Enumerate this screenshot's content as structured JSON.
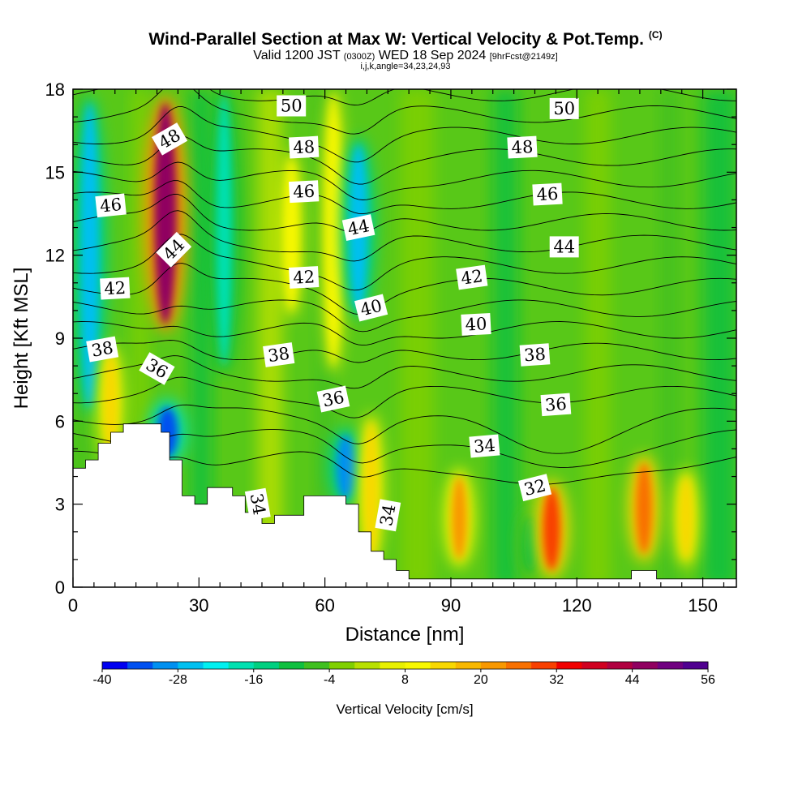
{
  "title": {
    "main": "Wind-Parallel Section at Max W: Vertical Velocity & Pot.Temp.",
    "copyright": "(C)",
    "valid_a": "Valid 1200 JST",
    "valid_z": "(0300Z)",
    "valid_b": "WED 18 Sep 2024",
    "valid_fcst": "[9hrFcst@2149z]",
    "indices": "i,j,k,angle=34,23,24,93"
  },
  "chart_data": {
    "type": "heatmap",
    "xlabel": "Distance [nm]",
    "ylabel": "Height [Kft MSL]",
    "xlim": [
      0,
      158
    ],
    "ylim": [
      0,
      18
    ],
    "x_ticks": [
      0,
      30,
      60,
      90,
      120,
      150
    ],
    "y_ticks": [
      0,
      3,
      6,
      9,
      12,
      15,
      18
    ],
    "colorbar": {
      "title": "Vertical Velocity [cm/s]",
      "min": -40,
      "max": 56,
      "step": 4,
      "tick_labels": [
        "-40",
        "-28",
        "-16",
        "-4",
        "8",
        "20",
        "32",
        "44",
        "56"
      ],
      "colors": [
        "#0000f0",
        "#0050f0",
        "#0090f0",
        "#00c0f0",
        "#00f0f0",
        "#00e0b0",
        "#00d080",
        "#10c040",
        "#40c020",
        "#80d000",
        "#b8e000",
        "#e8f000",
        "#f8f800",
        "#f8d800",
        "#f8b800",
        "#f89800",
        "#f87000",
        "#f84000",
        "#f00000",
        "#d00020",
        "#b00040",
        "#900060",
        "#700080",
        "#500090"
      ]
    },
    "velocity_features": [
      {
        "x": 4,
        "y_top": 17.5,
        "y_bottom": 6.5,
        "w": -28
      },
      {
        "x": 9,
        "y_top": 8.5,
        "y_bottom": 4.8,
        "w": 14
      },
      {
        "x": 22,
        "y_top": 17.5,
        "y_bottom": 9.5,
        "w": 44
      },
      {
        "x": 22.5,
        "y_top": 6.5,
        "y_bottom": 4.7,
        "w": -36
      },
      {
        "x": 36,
        "y_top": 17.8,
        "y_bottom": 8,
        "w": -20
      },
      {
        "x": 52,
        "y_top": 15.5,
        "y_bottom": 10,
        "w": 8
      },
      {
        "x": 62,
        "y_top": 17.8,
        "y_bottom": 8,
        "w": 10
      },
      {
        "x": 68,
        "y_top": 16,
        "y_bottom": 10,
        "w": -28
      },
      {
        "x": 65,
        "y_top": 5.5,
        "y_bottom": 3.2,
        "w": -32
      },
      {
        "x": 71,
        "y_top": 6,
        "y_bottom": 1,
        "w": 14
      },
      {
        "x": 92,
        "y_top": 4,
        "y_bottom": 1,
        "w": 20
      },
      {
        "x": 109,
        "y_top": 2.5,
        "y_bottom": 0.6,
        "w": -12
      },
      {
        "x": 114,
        "y_top": 3.6,
        "y_bottom": 0.6,
        "w": 28
      },
      {
        "x": 136,
        "y_top": 4.5,
        "y_bottom": 1.2,
        "w": 24
      },
      {
        "x": 146,
        "y_top": 4,
        "y_bottom": 1,
        "w": 14
      }
    ],
    "terrain": [
      [
        0,
        4.3
      ],
      [
        3,
        4.3
      ],
      [
        3,
        4.6
      ],
      [
        6,
        4.6
      ],
      [
        6,
        5.2
      ],
      [
        9,
        5.2
      ],
      [
        9,
        5.6
      ],
      [
        12,
        5.6
      ],
      [
        12,
        5.9
      ],
      [
        18,
        5.9
      ],
      [
        18,
        5.9
      ],
      [
        21,
        5.9
      ],
      [
        21,
        5.6
      ],
      [
        23,
        5.6
      ],
      [
        23,
        4.6
      ],
      [
        26,
        4.6
      ],
      [
        26,
        3.3
      ],
      [
        29,
        3.3
      ],
      [
        29,
        3.0
      ],
      [
        32,
        3.0
      ],
      [
        32,
        3.6
      ],
      [
        38,
        3.6
      ],
      [
        38,
        3.3
      ],
      [
        41,
        3.3
      ],
      [
        41,
        2.7
      ],
      [
        45,
        2.7
      ],
      [
        45,
        2.3
      ],
      [
        48,
        2.3
      ],
      [
        48,
        2.6
      ],
      [
        55,
        2.6
      ],
      [
        55,
        3.3
      ],
      [
        65,
        3.3
      ],
      [
        65,
        3.0
      ],
      [
        68,
        3.0
      ],
      [
        68,
        2.0
      ],
      [
        71,
        2.0
      ],
      [
        71,
        1.3
      ],
      [
        74,
        1.3
      ],
      [
        74,
        1.0
      ],
      [
        77,
        1.0
      ],
      [
        77,
        0.6
      ],
      [
        80,
        0.6
      ],
      [
        80,
        0.3
      ],
      [
        84,
        0.3
      ],
      [
        84,
        0.3
      ],
      [
        133,
        0.3
      ],
      [
        133,
        0.6
      ],
      [
        139,
        0.6
      ],
      [
        139,
        0.3
      ],
      [
        158,
        0.3
      ]
    ],
    "theta_contour_labels": [
      {
        "text": "50",
        "x": 52,
        "y": 17.4,
        "angle": 0
      },
      {
        "text": "50",
        "x": 117,
        "y": 17.3,
        "angle": 0
      },
      {
        "text": "48",
        "x": 23,
        "y": 16.2,
        "angle": -30
      },
      {
        "text": "48",
        "x": 55,
        "y": 15.9,
        "angle": -3
      },
      {
        "text": "48",
        "x": 107,
        "y": 15.9,
        "angle": -3
      },
      {
        "text": "46",
        "x": 9,
        "y": 13.8,
        "angle": -6
      },
      {
        "text": "46",
        "x": 55,
        "y": 14.3,
        "angle": -3
      },
      {
        "text": "46",
        "x": 113,
        "y": 14.2,
        "angle": -3
      },
      {
        "text": "44",
        "x": 24,
        "y": 12.2,
        "angle": -45
      },
      {
        "text": "44",
        "x": 68,
        "y": 13.0,
        "angle": -12
      },
      {
        "text": "44",
        "x": 117,
        "y": 12.3,
        "angle": 0
      },
      {
        "text": "42",
        "x": 10,
        "y": 10.8,
        "angle": -3
      },
      {
        "text": "42",
        "x": 55,
        "y": 11.2,
        "angle": -3
      },
      {
        "text": "42",
        "x": 95,
        "y": 11.2,
        "angle": -8
      },
      {
        "text": "40",
        "x": 71,
        "y": 10.1,
        "angle": -14
      },
      {
        "text": "40",
        "x": 96,
        "y": 9.5,
        "angle": -3
      },
      {
        "text": "38",
        "x": 7,
        "y": 8.6,
        "angle": -10
      },
      {
        "text": "38",
        "x": 49,
        "y": 8.4,
        "angle": -8
      },
      {
        "text": "38",
        "x": 110,
        "y": 8.4,
        "angle": -4
      },
      {
        "text": "36",
        "x": 20,
        "y": 7.9,
        "angle": 30
      },
      {
        "text": "36",
        "x": 62,
        "y": 6.8,
        "angle": -12
      },
      {
        "text": "36",
        "x": 115,
        "y": 6.6,
        "angle": -4
      },
      {
        "text": "34",
        "x": 98,
        "y": 5.1,
        "angle": -5
      },
      {
        "text": "34",
        "x": 44,
        "y": 3.0,
        "angle": 80
      },
      {
        "text": "34",
        "x": 75,
        "y": 2.6,
        "angle": -80
      },
      {
        "text": "32",
        "x": 110,
        "y": 3.6,
        "angle": -14
      }
    ]
  }
}
